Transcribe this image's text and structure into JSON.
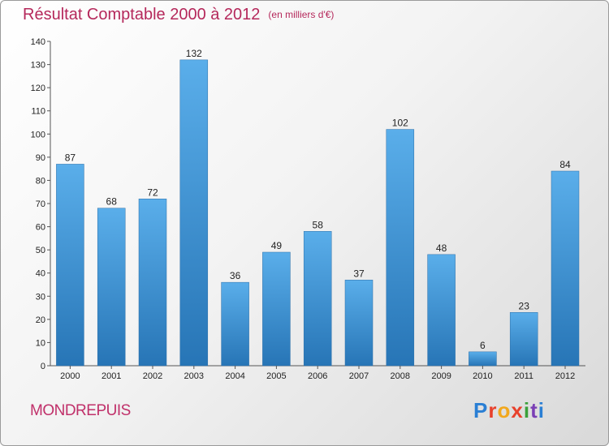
{
  "header": {
    "title": "Résultat Comptable 2000 à 2012",
    "subtitle": "(en milliers d'€)"
  },
  "footer": {
    "commune": "MONDREPUIS",
    "logo": "Proxiti"
  },
  "colors": {
    "title": "#b5285b",
    "bar_top": "#5aaeea",
    "bar_bottom": "#2775b6"
  },
  "chart_data": {
    "type": "bar",
    "title": "Résultat Comptable 2000 à 2012 (en milliers d'€)",
    "xlabel": "",
    "ylabel": "",
    "categories": [
      "2000",
      "2001",
      "2002",
      "2003",
      "2004",
      "2005",
      "2006",
      "2007",
      "2008",
      "2009",
      "2010",
      "2011",
      "2012"
    ],
    "values": [
      87,
      68,
      72,
      132,
      36,
      49,
      58,
      37,
      102,
      48,
      6,
      23,
      84
    ],
    "ylim": [
      0,
      140
    ],
    "yticks": [
      0,
      10,
      20,
      30,
      40,
      50,
      60,
      70,
      80,
      90,
      100,
      110,
      120,
      130,
      140
    ],
    "grid": false
  }
}
